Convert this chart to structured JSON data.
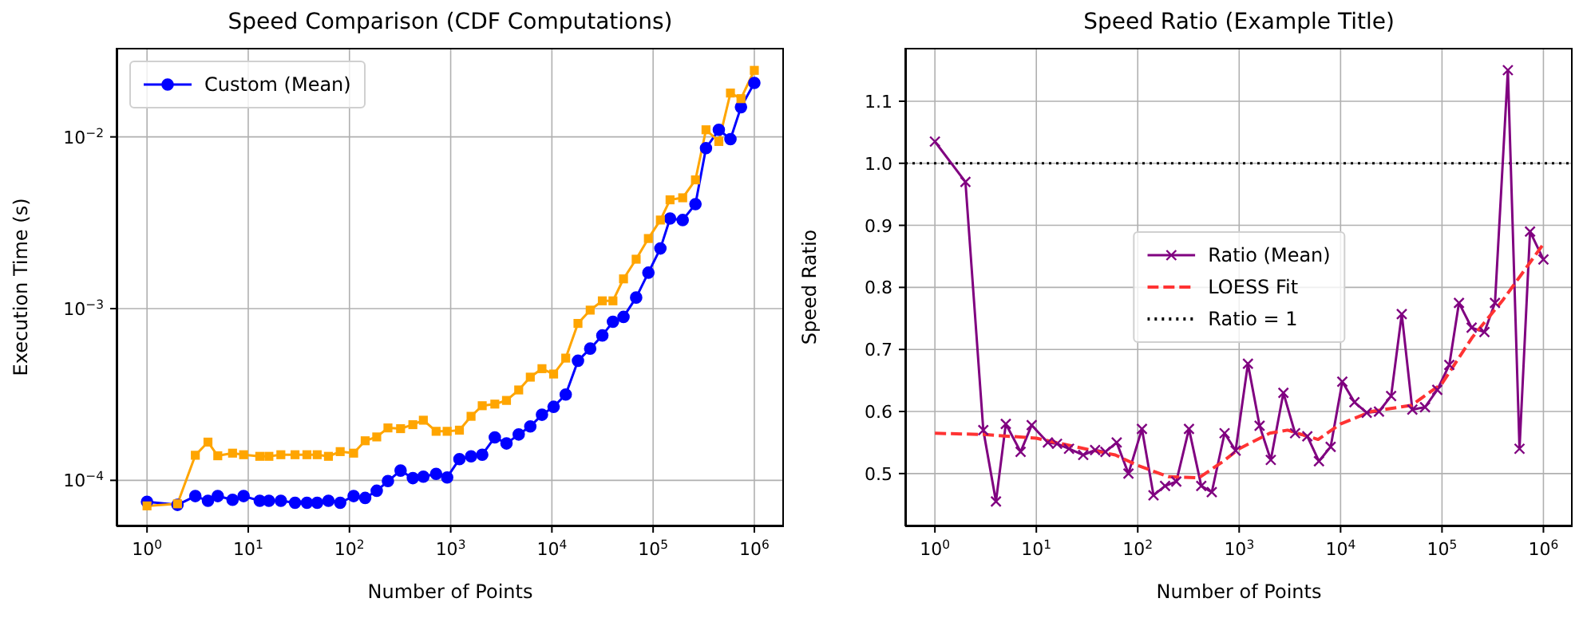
{
  "chart_data": [
    {
      "type": "line",
      "title": "Speed Comparison (CDF Computations)",
      "xlabel": "Number of Points",
      "ylabel": "Execution Time (s)",
      "log": "xy",
      "grid": true,
      "legend": "top left",
      "x": [
        1,
        2,
        3,
        4,
        5,
        7,
        9,
        13,
        16,
        21,
        29,
        38,
        48,
        62,
        81,
        110,
        143,
        186,
        240,
        320,
        423,
        537,
        718,
        923,
        1220,
        1590,
        2050,
        2730,
        3560,
        4700,
        6120,
        7980,
        10400,
        13700,
        18100,
        23900,
        31500,
        40100,
        51000,
        68000,
        89800,
        118000,
        147000,
        196000,
        262000,
        333000,
        446000,
        581000,
        738000,
        1000000
      ],
      "xlim": [
        0.5,
        1960000
      ],
      "xticks": [
        {
          "value": 1,
          "label": "10$^{0}$"
        },
        {
          "value": 10,
          "label": "10$^{1}$"
        },
        {
          "value": 100,
          "label": "10$^{2}$"
        },
        {
          "value": 1000,
          "label": "10$^{3}$"
        },
        {
          "value": 10000,
          "label": "10$^{4}$"
        },
        {
          "value": 100000,
          "label": "10$^{5}$"
        },
        {
          "value": 1000000,
          "label": "10$^{6}$"
        }
      ],
      "ylim": [
        5.4e-05,
        0.033
      ],
      "yticks": [
        {
          "value": 0.0001,
          "label": "10$^{−4}$"
        },
        {
          "value": 0.001,
          "label": "10$^{−3}$"
        },
        {
          "value": 0.01,
          "label": "10$^{−2}$"
        }
      ],
      "series": [
        {
          "name": "Custom (Mean)",
          "color": "#0000ff",
          "marker": "circle",
          "values": [
            7.5e-05,
            7.2e-05,
            8.1e-05,
            7.6e-05,
            8.1e-05,
            7.7e-05,
            8.1e-05,
            7.6e-05,
            7.6e-05,
            7.6e-05,
            7.4e-05,
            7.4e-05,
            7.4e-05,
            7.6e-05,
            7.4e-05,
            8.1e-05,
            7.9e-05,
            8.7e-05,
            9.9e-05,
            0.000114,
            0.000103,
            0.000105,
            0.000109,
            0.000104,
            0.000133,
            0.000138,
            0.000141,
            0.000178,
            0.000164,
            0.000185,
            0.000206,
            0.000241,
            0.000268,
            0.000316,
            0.000497,
            0.000585,
            0.000698,
            0.000839,
            0.000895,
            0.00116,
            0.00162,
            0.00224,
            0.00335,
            0.00328,
            0.00406,
            0.0086,
            0.011,
            0.0097,
            0.0149,
            0.0206
          ]
        },
        {
          "color": "#ffa500",
          "marker": "square",
          "values": [
            7.1e-05,
            7.3e-05,
            0.00014,
            0.000167,
            0.000139,
            0.000144,
            0.000141,
            0.000138,
            0.000138,
            0.000141,
            0.000141,
            0.000141,
            0.000141,
            0.000138,
            0.000147,
            0.000144,
            0.00017,
            0.000179,
            0.000202,
            0.0002,
            0.000211,
            0.000224,
            0.000193,
            0.000193,
            0.000196,
            0.000236,
            0.000272,
            0.000278,
            0.000292,
            0.000336,
            0.000399,
            0.000447,
            0.000416,
            0.000515,
            0.00082,
            0.00098,
            0.00111,
            0.00111,
            0.00149,
            0.00194,
            0.00256,
            0.00328,
            0.0043,
            0.00442,
            0.00562,
            0.011,
            0.0094,
            0.018,
            0.0167,
            0.0244
          ]
        }
      ]
    },
    {
      "type": "line",
      "title": "Speed Ratio (Example Title)",
      "xlabel": "Number of Points",
      "ylabel": "Speed Ratio",
      "log": "x",
      "grid": true,
      "legend": "center",
      "x": [
        1,
        2,
        3,
        4,
        5,
        7,
        9,
        13,
        16,
        21,
        29,
        38,
        48,
        62,
        81,
        110,
        143,
        186,
        240,
        320,
        423,
        537,
        718,
        923,
        1220,
        1590,
        2050,
        2730,
        3560,
        4700,
        6120,
        7980,
        10400,
        13700,
        18100,
        23900,
        31500,
        40100,
        51000,
        68000,
        89800,
        118000,
        147000,
        196000,
        262000,
        333000,
        446000,
        581000,
        738000,
        1000000
      ],
      "xlim": [
        0.51,
        1940000
      ],
      "xticks": [
        {
          "value": 1,
          "label": "10$^{0}$"
        },
        {
          "value": 10,
          "label": "10$^{1}$"
        },
        {
          "value": 100,
          "label": "10$^{2}$"
        },
        {
          "value": 1000,
          "label": "10$^{3}$"
        },
        {
          "value": 10000,
          "label": "10$^{4}$"
        },
        {
          "value": 100000,
          "label": "10$^{5}$"
        },
        {
          "value": 1000000,
          "label": "10$^{6}$"
        }
      ],
      "ylim": [
        0.415,
        1.186
      ],
      "yticks": [
        0.5,
        0.6,
        0.7,
        0.8,
        0.9,
        {
          "value": 1,
          "label": "1.0"
        },
        1.1
      ],
      "series": [
        {
          "name": "Ratio (Mean)",
          "color": "#800080",
          "marker": "cross",
          "values": [
            1.035,
            0.97,
            0.57,
            0.455,
            0.58,
            0.535,
            0.578,
            0.55,
            0.548,
            0.54,
            0.53,
            0.538,
            0.535,
            0.55,
            0.5,
            0.572,
            0.465,
            0.48,
            0.487,
            0.572,
            0.48,
            0.47,
            0.565,
            0.537,
            0.677,
            0.577,
            0.522,
            0.63,
            0.565,
            0.56,
            0.52,
            0.543,
            0.648,
            0.615,
            0.598,
            0.6,
            0.625,
            0.757,
            0.603,
            0.607,
            0.635,
            0.675,
            0.775,
            0.735,
            0.728,
            0.775,
            1.15,
            0.54,
            0.89,
            0.845
          ]
        },
        {
          "name": "LOESS Fit",
          "type": "line",
          "color": "#ff3333",
          "marker": "none",
          "line_style": "dashed",
          "x": [
            1,
            3,
            10,
            30,
            60,
            100,
            200,
            400,
            700,
            1000,
            2000,
            3000,
            6000,
            10000,
            20000,
            50000,
            100000,
            200000,
            400000,
            1000000
          ],
          "values": [
            0.565,
            0.563,
            0.557,
            0.54,
            0.53,
            0.513,
            0.495,
            0.493,
            0.52,
            0.54,
            0.565,
            0.57,
            0.555,
            0.58,
            0.6,
            0.61,
            0.645,
            0.72,
            0.78,
            0.87
          ]
        }
      ],
      "ref_lines": [
        {
          "axis": "y",
          "value": 1,
          "label": "Ratio = 1",
          "color": "#000000",
          "line_style": "dotted"
        }
      ]
    }
  ]
}
